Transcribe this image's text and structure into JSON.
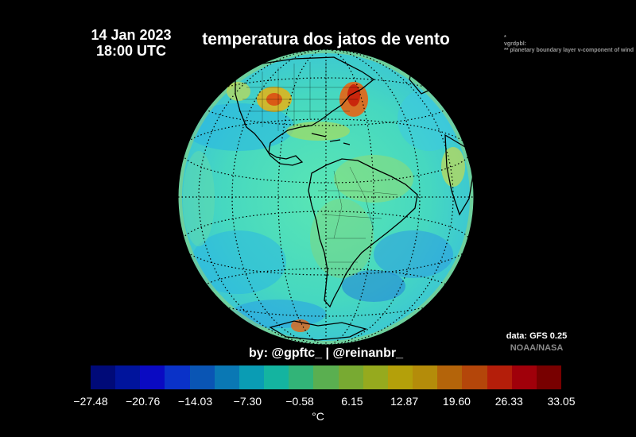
{
  "header": {
    "date": "14 Jan 2023",
    "time": "18:00 UTC",
    "title": "temperatura dos jatos de vento"
  },
  "metadata": {
    "line1": "*",
    "line2": "vgrdpbl:",
    "line3": "** planetary boundary layer v-component of wind"
  },
  "credits": {
    "data_source": "data: GFS 0.25",
    "data_org": "NOAA/NASA",
    "byline": "by: @gpftc_ | @reinanbr_"
  },
  "colorbar": {
    "ticks": [
      "−27.48",
      "−20.76",
      "−14.03",
      "−7.30",
      "−0.58",
      "6.15",
      "12.87",
      "19.60",
      "26.33",
      "33.05"
    ],
    "tick_values": [
      -27.48,
      -20.76,
      -14.03,
      -7.3,
      -0.58,
      6.15,
      12.87,
      19.6,
      26.33,
      33.05
    ],
    "range": [
      -27.48,
      33.05
    ],
    "unit": "°C",
    "colors": [
      "#000a78",
      "#00149c",
      "#0a0ac2",
      "#0a32c8",
      "#0a55b4",
      "#0a78b4",
      "#0a9cb4",
      "#14b4a0",
      "#32b478",
      "#5aaf50",
      "#78aa32",
      "#96aa1e",
      "#b4a00a",
      "#b48c0a",
      "#b4640a",
      "#b4460a",
      "#b41e0a",
      "#a0000a",
      "#780000"
    ]
  },
  "map": {
    "projection": "orthographic",
    "center": "Americas / South America",
    "background": "#50e4b4",
    "coastline_color": "#000000",
    "graticule": "dotted"
  }
}
